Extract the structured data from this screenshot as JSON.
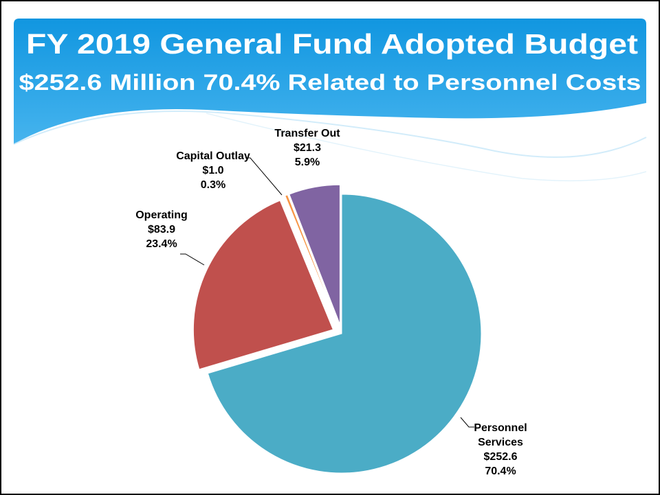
{
  "chart_data": {
    "type": "pie",
    "title": "FY 2019 General Fund Adopted Budget",
    "subtitle": "$252.6 Million 70.4% Related to Personnel Costs",
    "categories": [
      "Personnel Services",
      "Operating",
      "Capital Outlay",
      "Transfer Out"
    ],
    "values": [
      70.4,
      23.4,
      0.3,
      5.9
    ],
    "value_labels": [
      "70.4%",
      "23.4%",
      "0.3%",
      "5.9%"
    ],
    "amount_labels": [
      "$252.6",
      "$83.9",
      "$1.0",
      "$21.3"
    ],
    "colors": [
      "#4bacc6",
      "#c0504d",
      "#f79646",
      "#8064a2"
    ]
  }
}
